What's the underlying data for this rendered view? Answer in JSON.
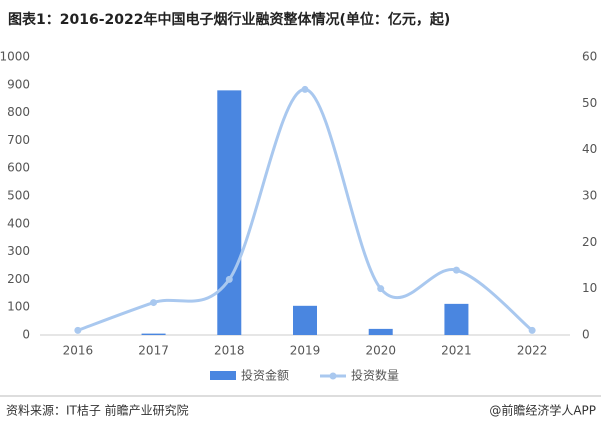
{
  "chart_data": {
    "type": "combo",
    "title": "图表1：2016-2022年中国电子烟行业融资整体情况(单位：亿元，起)",
    "categories": [
      "2016",
      "2017",
      "2018",
      "2019",
      "2020",
      "2021",
      "2022"
    ],
    "series": [
      {
        "name": "投资金额",
        "type": "bar",
        "color": "#4a86e0",
        "values": [
          0,
          5,
          880,
          105,
          22,
          112,
          0
        ]
      },
      {
        "name": "投资数量",
        "type": "line",
        "axis": "y2",
        "color": "#a9c8ef",
        "values": [
          1,
          7,
          12,
          53,
          10,
          14,
          1
        ]
      }
    ],
    "ylim": [
      0,
      1000
    ],
    "yticks": [
      0,
      100,
      200,
      300,
      400,
      500,
      600,
      700,
      800,
      900,
      1000
    ],
    "y2lim": [
      0,
      60
    ],
    "y2ticks": [
      0,
      10,
      20,
      30,
      40,
      50,
      60
    ],
    "grid": false,
    "source": "资料来源：IT桔子 前瞻产业研究院",
    "credit": "@前瞻经济学人APP"
  }
}
